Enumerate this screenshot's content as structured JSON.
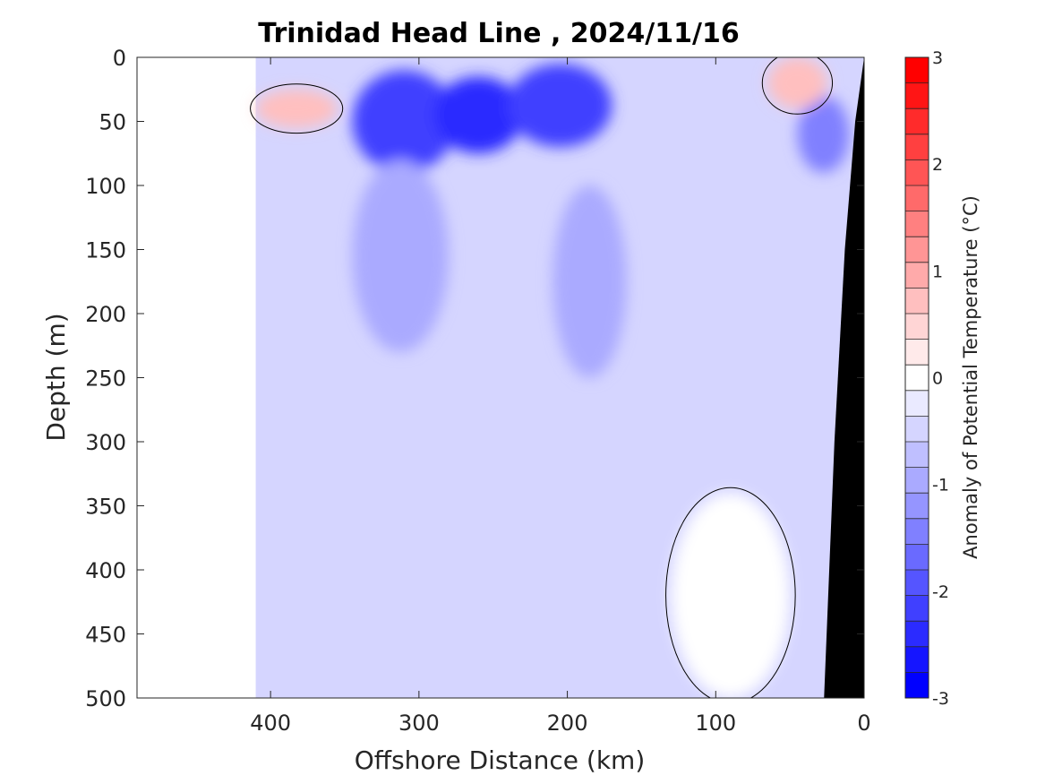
{
  "chart_data": {
    "type": "heatmap",
    "title": "Trinidad Head Line , 2024/11/16",
    "xlabel": "Offshore Distance (km)",
    "ylabel": "Depth (m)",
    "xlim": [
      490,
      0
    ],
    "ylim": [
      0,
      500
    ],
    "x_ticks": [
      400,
      300,
      200,
      100,
      0
    ],
    "y_ticks": [
      0,
      50,
      100,
      150,
      200,
      250,
      300,
      350,
      400,
      450,
      500
    ],
    "x_tick_labels": [
      "400",
      "300",
      "200",
      "100",
      "0"
    ],
    "y_tick_labels": [
      "0",
      "50",
      "100",
      "150",
      "200",
      "250",
      "300",
      "350",
      "400",
      "450",
      "500"
    ],
    "grid": false,
    "colorbar": {
      "label": "Anomaly of Potential Temperature (°C)",
      "range": [
        -3,
        3
      ],
      "ticks": [
        -3,
        -2,
        -1,
        0,
        1,
        2,
        3
      ],
      "tick_labels": [
        "-3",
        "-2",
        "-1",
        "0",
        "1",
        "2",
        "3"
      ],
      "levels": [
        -3,
        -2.75,
        -2.5,
        -2.25,
        -2,
        -1.75,
        -1.5,
        -1.25,
        -1,
        -0.75,
        -0.5,
        -0.25,
        0,
        0.25,
        0.5,
        0.75,
        1,
        1.25,
        1.5,
        1.75,
        2,
        2.25,
        2.5,
        2.75,
        3
      ],
      "colors": [
        "#0000ff",
        "#1515ff",
        "#2b2bff",
        "#4040ff",
        "#5555ff",
        "#6a6aff",
        "#8080ff",
        "#9595ff",
        "#aaaaff",
        "#bfbfff",
        "#d5d5ff",
        "#eaeaff",
        "#ffffff",
        "#ffeaea",
        "#ffd5d5",
        "#ffbfbf",
        "#ffaaaa",
        "#ff9595",
        "#ff8080",
        "#ff6a6a",
        "#ff5555",
        "#ff4040",
        "#ff2b2b",
        "#ff1515",
        "#ff0000"
      ]
    },
    "data_coverage_km": [
      410,
      0
    ],
    "zero_contour": true,
    "seafloor_color": "#000000",
    "anomaly_regions": [
      {
        "name": "surface-cold-core-a",
        "x": [
          345,
          275
        ],
        "y": [
          10,
          90
        ],
        "value": -2.2
      },
      {
        "name": "surface-cold-core-b",
        "x": [
          290,
          230
        ],
        "y": [
          15,
          75
        ],
        "value": -2.3
      },
      {
        "name": "surface-cold-core-c",
        "x": [
          240,
          170
        ],
        "y": [
          5,
          70
        ],
        "value": -2.2
      },
      {
        "name": "nearshore-cold",
        "x": [
          45,
          10
        ],
        "y": [
          30,
          90
        ],
        "value": -1.3
      },
      {
        "name": "offshore-warm-lens",
        "x": [
          410,
          355
        ],
        "y": [
          25,
          55
        ],
        "value": 0.9
      },
      {
        "name": "nearshore-warm-lens",
        "x": [
          65,
          25
        ],
        "y": [
          0,
          40
        ],
        "value": 0.9
      },
      {
        "name": "mid-column-cool",
        "x": [
          345,
          280
        ],
        "y": [
          80,
          230
        ],
        "value": -1.0
      },
      {
        "name": "mid-column-cool-2",
        "x": [
          210,
          160
        ],
        "y": [
          100,
          250
        ],
        "value": -1.0
      },
      {
        "name": "deep-neutral",
        "x": [
          130,
          50
        ],
        "y": [
          340,
          500
        ],
        "value": 0.0
      }
    ]
  }
}
